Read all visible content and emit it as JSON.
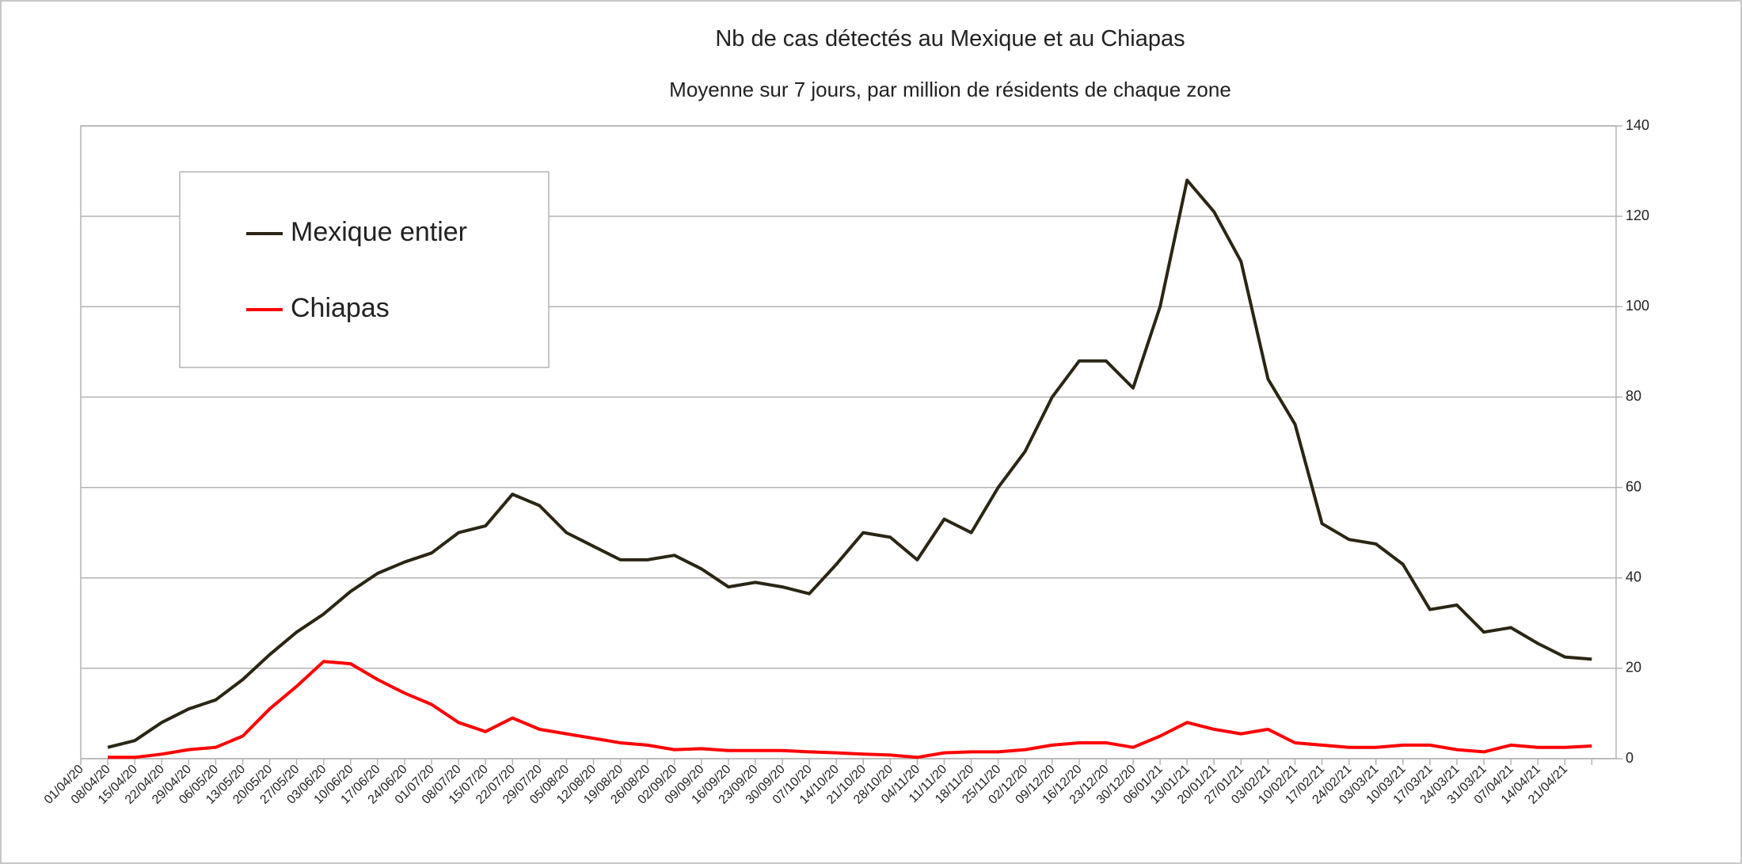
{
  "chart_data": {
    "type": "line",
    "title": "Nb de cas détectés  au Mexique et au Chiapas",
    "subtitle": "Moyenne sur 7 jours, par million de résidents de chaque zone",
    "categories": [
      "01/04/20",
      "08/04/20",
      "15/04/20",
      "22/04/20",
      "29/04/20",
      "06/05/20",
      "13/05/20",
      "20/05/20",
      "27/05/20",
      "03/06/20",
      "10/06/20",
      "17/06/20",
      "24/06/20",
      "01/07/20",
      "08/07/20",
      "15/07/20",
      "22/07/20",
      "29/07/20",
      "05/08/20",
      "12/08/20",
      "19/08/20",
      "26/08/20",
      "02/09/20",
      "09/09/20",
      "16/09/20",
      "23/09/20",
      "30/09/20",
      "07/10/20",
      "14/10/20",
      "21/10/20",
      "28/10/20",
      "04/11/20",
      "11/11/20",
      "18/11/20",
      "25/11/20",
      "02/12/20",
      "09/12/20",
      "16/12/20",
      "23/12/20",
      "30/12/20",
      "06/01/21",
      "13/01/21",
      "20/01/21",
      "27/01/21",
      "03/02/21",
      "10/02/21",
      "17/02/21",
      "24/02/21",
      "03/03/21",
      "10/03/21",
      "17/03/21",
      "24/03/21",
      "31/03/21",
      "07/04/21",
      "14/04/21",
      "21/04/21",
      null
    ],
    "series": [
      {
        "name": "Mexique entier",
        "color": "#2b2614",
        "values": [
          null,
          2.5,
          4,
          8,
          11,
          13,
          17.5,
          23,
          28,
          32,
          37,
          41,
          43.5,
          45.5,
          50,
          51.5,
          58.5,
          56,
          50,
          47,
          44,
          44,
          45,
          42,
          38,
          39,
          38,
          36.5,
          43,
          50,
          49,
          44,
          53,
          50,
          60,
          68,
          80,
          88,
          88,
          82,
          100,
          128,
          121,
          110,
          84,
          74,
          52,
          48.5,
          47.5,
          43,
          33,
          34,
          28,
          29,
          25.5,
          22.5,
          22
        ]
      },
      {
        "name": "Chiapas",
        "color": "#ff0000",
        "values": [
          null,
          0.3,
          0.3,
          1,
          2,
          2.5,
          5,
          11,
          16,
          21.5,
          21,
          17.5,
          14.5,
          12,
          8,
          6,
          9,
          6.5,
          5.5,
          4.5,
          3.5,
          3,
          2,
          2.2,
          1.8,
          1.8,
          1.8,
          1.5,
          1.3,
          1,
          0.8,
          0.3,
          1.3,
          1.5,
          1.5,
          2,
          3,
          3.5,
          3.5,
          2.5,
          5,
          8,
          6.5,
          5.5,
          6.5,
          3.5,
          3,
          2.5,
          2.5,
          3,
          3,
          2,
          1.5,
          3,
          2.5,
          2.5,
          2.8
        ]
      }
    ],
    "ylim": [
      0,
      140
    ],
    "yticks": [
      0,
      20,
      40,
      60,
      80,
      100,
      120,
      140
    ],
    "y_axis_side": "right",
    "grid": true,
    "legend": "upper left"
  }
}
